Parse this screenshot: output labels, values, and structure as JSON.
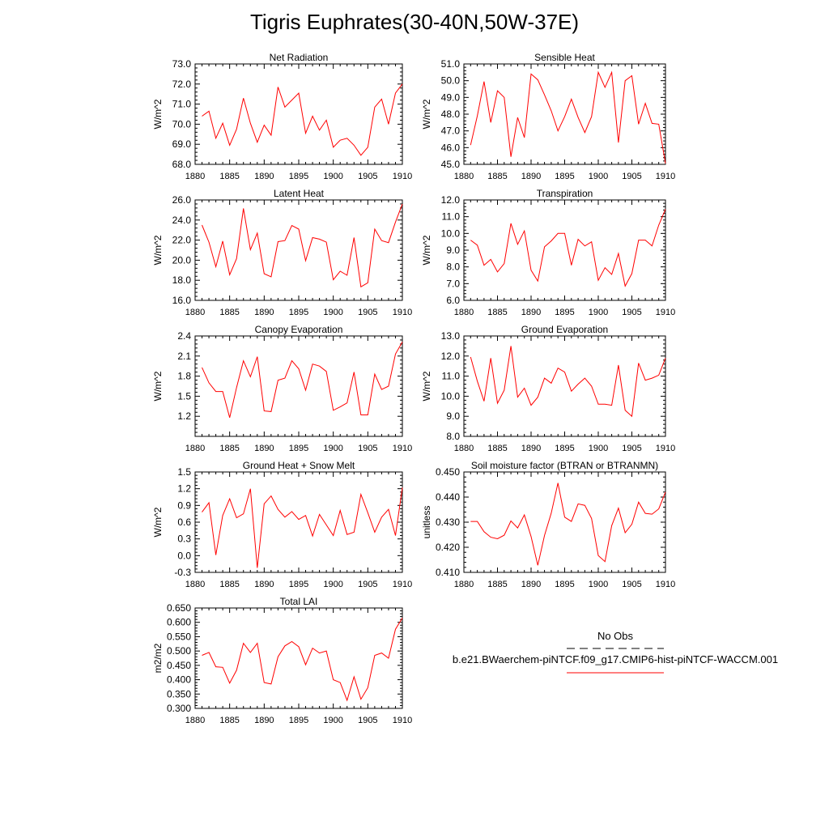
{
  "title": "Tigris Euphrates(30-40N,50W-37E)",
  "colors": {
    "model": "#ff0000",
    "obs": "#000000",
    "axis": "#000000"
  },
  "legend": {
    "obs_label": "No Obs",
    "model_label": "b.e21.BWaerchem-piNTCF.f09_g17.CMIP6-hist-piNTCF-WACCM.001"
  },
  "chart_data": [
    {
      "type": "line",
      "title": "Net Radiation",
      "ylabel": "W/m^2",
      "xlim": [
        1880,
        1910
      ],
      "ylim": [
        68.0,
        73.0
      ],
      "yticks": [
        68.0,
        69.0,
        70.0,
        71.0,
        72.0,
        73.0
      ],
      "ydec": 1,
      "xticks": [
        1880,
        1885,
        1890,
        1895,
        1900,
        1905,
        1910
      ],
      "x": [
        1881,
        1882,
        1883,
        1884,
        1885,
        1886,
        1887,
        1888,
        1889,
        1890,
        1891,
        1892,
        1893,
        1894,
        1895,
        1896,
        1897,
        1898,
        1899,
        1900,
        1901,
        1902,
        1903,
        1904,
        1905,
        1906,
        1907,
        1908,
        1909,
        1910
      ],
      "series": [
        {
          "values": [
            70.4,
            70.65,
            69.3,
            70.05,
            68.95,
            69.75,
            71.3,
            70.05,
            69.1,
            69.95,
            69.45,
            71.85,
            70.85,
            71.2,
            71.55,
            69.55,
            70.4,
            69.7,
            70.2,
            68.85,
            69.2,
            69.3,
            68.95,
            68.45,
            68.85,
            70.85,
            71.25,
            70.0,
            71.55,
            72.0
          ]
        }
      ]
    },
    {
      "type": "line",
      "title": "Sensible Heat",
      "ylabel": "W/m^2",
      "xlim": [
        1880,
        1910
      ],
      "ylim": [
        45.0,
        51.0
      ],
      "yticks": [
        45.0,
        46.0,
        47.0,
        48.0,
        49.0,
        50.0,
        51.0
      ],
      "ydec": 1,
      "xticks": [
        1880,
        1885,
        1890,
        1895,
        1900,
        1905,
        1910
      ],
      "x": [
        1881,
        1882,
        1883,
        1884,
        1885,
        1886,
        1887,
        1888,
        1889,
        1890,
        1891,
        1892,
        1893,
        1894,
        1895,
        1896,
        1897,
        1898,
        1899,
        1900,
        1901,
        1902,
        1903,
        1904,
        1905,
        1906,
        1907,
        1908,
        1909,
        1910
      ],
      "series": [
        {
          "values": [
            46.15,
            47.9,
            49.95,
            47.5,
            49.4,
            49.0,
            45.45,
            47.8,
            46.6,
            50.4,
            50.05,
            49.15,
            48.2,
            47.0,
            47.85,
            48.9,
            47.8,
            46.9,
            47.85,
            50.5,
            49.6,
            50.5,
            46.3,
            50.0,
            50.3,
            47.4,
            48.65,
            47.45,
            47.4,
            45.05
          ]
        }
      ]
    },
    {
      "type": "line",
      "title": "Latent Heat",
      "ylabel": "W/m^2",
      "xlim": [
        1880,
        1910
      ],
      "ylim": [
        16.0,
        26.0
      ],
      "yticks": [
        16.0,
        18.0,
        20.0,
        22.0,
        24.0,
        26.0
      ],
      "ydec": 1,
      "xticks": [
        1880,
        1885,
        1890,
        1895,
        1900,
        1905,
        1910
      ],
      "x": [
        1881,
        1882,
        1883,
        1884,
        1885,
        1886,
        1887,
        1888,
        1889,
        1890,
        1891,
        1892,
        1893,
        1894,
        1895,
        1896,
        1897,
        1898,
        1899,
        1900,
        1901,
        1902,
        1903,
        1904,
        1905,
        1906,
        1907,
        1908,
        1909,
        1910
      ],
      "series": [
        {
          "values": [
            23.5,
            21.8,
            19.35,
            21.9,
            18.55,
            20.15,
            25.15,
            21.05,
            22.7,
            18.65,
            18.35,
            21.85,
            21.95,
            23.45,
            23.1,
            19.95,
            22.25,
            22.1,
            21.8,
            18.05,
            18.9,
            18.5,
            22.25,
            17.35,
            17.75,
            23.1,
            21.95,
            21.75,
            23.8,
            25.6
          ]
        }
      ]
    },
    {
      "type": "line",
      "title": "Transpiration",
      "ylabel": "W/m^2",
      "xlim": [
        1880,
        1910
      ],
      "ylim": [
        6.0,
        12.0
      ],
      "yticks": [
        6.0,
        7.0,
        8.0,
        9.0,
        10.0,
        11.0,
        12.0
      ],
      "ydec": 1,
      "xticks": [
        1880,
        1885,
        1890,
        1895,
        1900,
        1905,
        1910
      ],
      "x": [
        1881,
        1882,
        1883,
        1884,
        1885,
        1886,
        1887,
        1888,
        1889,
        1890,
        1891,
        1892,
        1893,
        1894,
        1895,
        1896,
        1897,
        1898,
        1899,
        1900,
        1901,
        1902,
        1903,
        1904,
        1905,
        1906,
        1907,
        1908,
        1909,
        1910
      ],
      "series": [
        {
          "values": [
            9.6,
            9.3,
            8.1,
            8.45,
            7.7,
            8.2,
            10.6,
            9.35,
            10.15,
            7.8,
            7.15,
            9.2,
            9.55,
            10.0,
            10.0,
            8.1,
            9.65,
            9.25,
            9.5,
            7.2,
            7.95,
            7.55,
            8.8,
            6.85,
            7.6,
            9.6,
            9.6,
            9.25,
            10.5,
            11.45
          ]
        }
      ]
    },
    {
      "type": "line",
      "title": "Canopy Evaporation",
      "ylabel": "W/m^2",
      "xlim": [
        1880,
        1910
      ],
      "ylim": [
        0.9,
        2.4
      ],
      "yticks": [
        1.2,
        1.5,
        1.8,
        2.1,
        2.4
      ],
      "ydec": 1,
      "xticks": [
        1880,
        1885,
        1890,
        1895,
        1900,
        1905,
        1910
      ],
      "x": [
        1881,
        1882,
        1883,
        1884,
        1885,
        1886,
        1887,
        1888,
        1889,
        1890,
        1891,
        1892,
        1893,
        1894,
        1895,
        1896,
        1897,
        1898,
        1899,
        1900,
        1901,
        1902,
        1903,
        1904,
        1905,
        1906,
        1907,
        1908,
        1909,
        1910
      ],
      "series": [
        {
          "values": [
            1.93,
            1.7,
            1.57,
            1.57,
            1.18,
            1.63,
            2.03,
            1.79,
            2.09,
            1.28,
            1.27,
            1.74,
            1.77,
            2.03,
            1.91,
            1.59,
            1.98,
            1.95,
            1.87,
            1.29,
            1.34,
            1.4,
            1.86,
            1.22,
            1.22,
            1.83,
            1.6,
            1.65,
            2.13,
            2.31
          ]
        }
      ]
    },
    {
      "type": "line",
      "title": "Ground Evaporation",
      "ylabel": "W/m^2",
      "xlim": [
        1880,
        1910
      ],
      "ylim": [
        8.0,
        13.0
      ],
      "yticks": [
        8.0,
        9.0,
        10.0,
        11.0,
        12.0,
        13.0
      ],
      "ydec": 1,
      "xticks": [
        1880,
        1885,
        1890,
        1895,
        1900,
        1905,
        1910
      ],
      "x": [
        1881,
        1882,
        1883,
        1884,
        1885,
        1886,
        1887,
        1888,
        1889,
        1890,
        1891,
        1892,
        1893,
        1894,
        1895,
        1896,
        1897,
        1898,
        1899,
        1900,
        1901,
        1902,
        1903,
        1904,
        1905,
        1906,
        1907,
        1908,
        1909,
        1910
      ],
      "series": [
        {
          "values": [
            11.95,
            10.75,
            9.75,
            11.9,
            9.65,
            10.3,
            12.5,
            9.95,
            10.4,
            9.55,
            9.95,
            10.9,
            10.65,
            11.4,
            11.2,
            10.25,
            10.6,
            10.9,
            10.5,
            9.6,
            9.6,
            9.55,
            11.55,
            9.3,
            9.0,
            11.65,
            10.8,
            10.9,
            11.05,
            11.9
          ]
        }
      ]
    },
    {
      "type": "line",
      "title": "Ground Heat + Snow Melt",
      "ylabel": "W/m^2",
      "xlim": [
        1880,
        1910
      ],
      "ylim": [
        -0.3,
        1.5
      ],
      "yticks": [
        -0.3,
        0.0,
        0.3,
        0.6,
        0.9,
        1.2,
        1.5
      ],
      "ydec": 1,
      "xticks": [
        1880,
        1885,
        1890,
        1895,
        1900,
        1905,
        1910
      ],
      "x": [
        1881,
        1882,
        1883,
        1884,
        1885,
        1886,
        1887,
        1888,
        1889,
        1890,
        1891,
        1892,
        1893,
        1894,
        1895,
        1896,
        1897,
        1898,
        1899,
        1900,
        1901,
        1902,
        1903,
        1904,
        1905,
        1906,
        1907,
        1908,
        1909,
        1910
      ],
      "series": [
        {
          "values": [
            0.78,
            0.95,
            0.01,
            0.72,
            1.02,
            0.68,
            0.75,
            1.2,
            -0.22,
            0.93,
            1.07,
            0.83,
            0.69,
            0.79,
            0.65,
            0.72,
            0.35,
            0.74,
            0.55,
            0.36,
            0.81,
            0.38,
            0.42,
            1.1,
            0.77,
            0.42,
            0.69,
            0.83,
            0.36,
            1.22
          ]
        }
      ]
    },
    {
      "type": "line",
      "title": "Soil moisture factor (BTRAN or BTRANMN)",
      "ylabel": "unitless",
      "xlim": [
        1880,
        1910
      ],
      "ylim": [
        0.41,
        0.45
      ],
      "yticks": [
        0.41,
        0.42,
        0.43,
        0.44,
        0.45
      ],
      "ydec": 3,
      "xticks": [
        1880,
        1885,
        1890,
        1895,
        1900,
        1905,
        1910
      ],
      "x": [
        1881,
        1882,
        1883,
        1884,
        1885,
        1886,
        1887,
        1888,
        1889,
        1890,
        1891,
        1892,
        1893,
        1894,
        1895,
        1896,
        1897,
        1898,
        1899,
        1900,
        1901,
        1902,
        1903,
        1904,
        1905,
        1906,
        1907,
        1908,
        1909,
        1910
      ],
      "series": [
        {
          "values": [
            0.4303,
            0.4303,
            0.4262,
            0.424,
            0.4234,
            0.4248,
            0.4305,
            0.4277,
            0.4329,
            0.4243,
            0.4128,
            0.4247,
            0.4336,
            0.4456,
            0.432,
            0.4303,
            0.4373,
            0.4367,
            0.4315,
            0.4167,
            0.4143,
            0.4286,
            0.4356,
            0.4258,
            0.4292,
            0.438,
            0.4335,
            0.4332,
            0.4353,
            0.442
          ]
        }
      ]
    },
    {
      "type": "line",
      "title": "Total LAI",
      "ylabel": "m2/m2",
      "xlim": [
        1880,
        1910
      ],
      "ylim": [
        0.3,
        0.65
      ],
      "yticks": [
        0.3,
        0.35,
        0.4,
        0.45,
        0.5,
        0.55,
        0.6,
        0.65
      ],
      "ydec": 3,
      "xticks": [
        1880,
        1885,
        1890,
        1895,
        1900,
        1905,
        1910
      ],
      "x": [
        1881,
        1882,
        1883,
        1884,
        1885,
        1886,
        1887,
        1888,
        1889,
        1890,
        1891,
        1892,
        1893,
        1894,
        1895,
        1896,
        1897,
        1898,
        1899,
        1900,
        1901,
        1902,
        1903,
        1904,
        1905,
        1906,
        1907,
        1908,
        1909,
        1910
      ],
      "series": [
        {
          "values": [
            0.485,
            0.495,
            0.445,
            0.443,
            0.388,
            0.433,
            0.527,
            0.495,
            0.527,
            0.39,
            0.385,
            0.48,
            0.518,
            0.533,
            0.515,
            0.452,
            0.51,
            0.493,
            0.5,
            0.4,
            0.39,
            0.328,
            0.41,
            0.332,
            0.372,
            0.485,
            0.493,
            0.475,
            0.576,
            0.615
          ]
        }
      ]
    }
  ]
}
